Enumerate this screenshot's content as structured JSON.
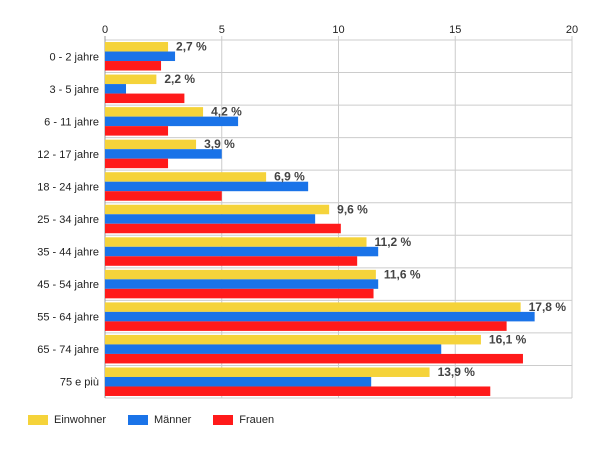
{
  "chart_data": {
    "type": "bar",
    "orientation": "horizontal",
    "categories": [
      "0 - 2 jahre",
      "3 - 5 jahre",
      "6 - 11 jahre",
      "12 - 17 jahre",
      "18 - 24 jahre",
      "25 - 34 jahre",
      "35 - 44 jahre",
      "45 - 54 jahre",
      "55 - 64 jahre",
      "65 - 74 jahre",
      "75 e più"
    ],
    "series": [
      {
        "name": "Einwohner",
        "color": "#f5d33a",
        "values": [
          2.7,
          2.2,
          4.2,
          3.9,
          6.9,
          9.6,
          11.2,
          11.6,
          17.8,
          16.1,
          13.9
        ],
        "labels": [
          "2,7 %",
          "2,2 %",
          "4,2 %",
          "3,9 %",
          "6,9 %",
          "9,6 %",
          "11,2 %",
          "11,6 %",
          "17,8 %",
          "16,1 %",
          "13,9 %"
        ]
      },
      {
        "name": "Männer",
        "color": "#1a73e8",
        "values": [
          3.0,
          0.9,
          5.7,
          5.0,
          8.7,
          9.0,
          11.7,
          11.7,
          18.4,
          14.4,
          11.4
        ]
      },
      {
        "name": "Frauen",
        "color": "#ff1a1a",
        "values": [
          2.4,
          3.4,
          2.7,
          2.7,
          5.0,
          10.1,
          10.8,
          11.5,
          17.2,
          17.9,
          16.5
        ]
      }
    ],
    "xlim": [
      0,
      20
    ],
    "xticks": [
      0,
      5,
      10,
      15,
      20
    ],
    "grid": true,
    "legend_position": "bottom-left",
    "title": "",
    "xlabel": "",
    "ylabel": ""
  }
}
